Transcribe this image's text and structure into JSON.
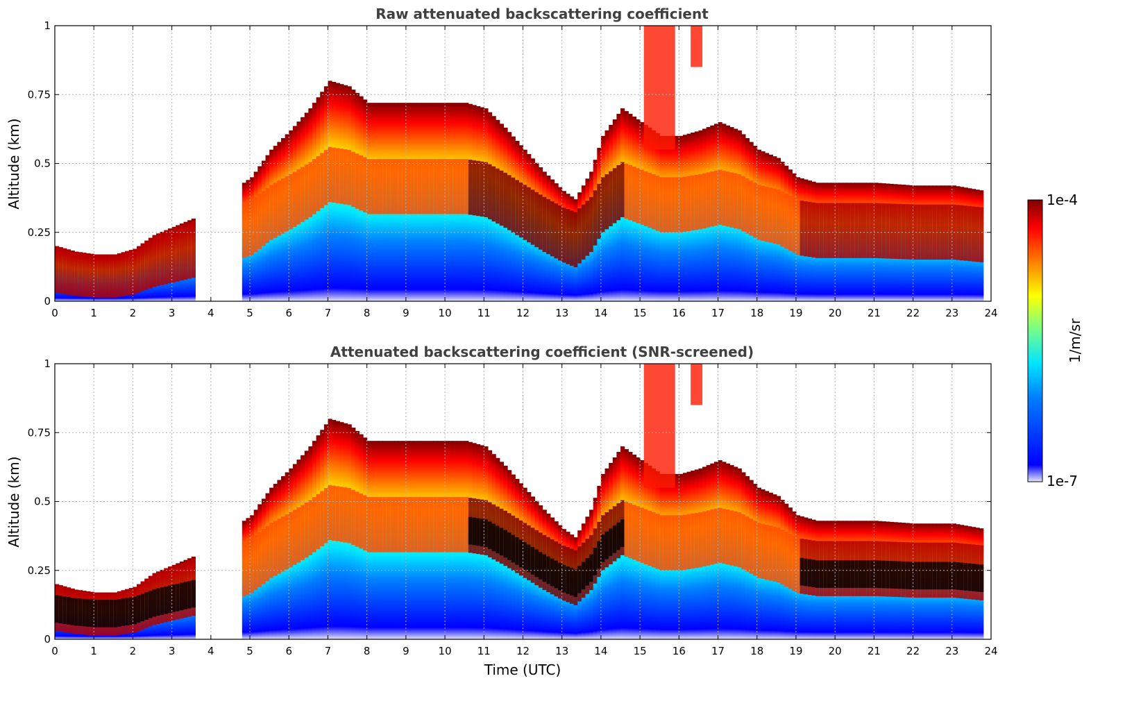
{
  "chart_data": [
    {
      "type": "heatmap",
      "title": "Raw attenuated backscattering coefficient",
      "xlabel": "",
      "ylabel": "Altitude (km)",
      "xlim": [
        0,
        24
      ],
      "ylim": [
        0,
        1
      ],
      "xticks": [
        0,
        1,
        2,
        3,
        4,
        5,
        6,
        7,
        8,
        9,
        10,
        11,
        12,
        13,
        14,
        15,
        16,
        17,
        18,
        19,
        20,
        21,
        22,
        23,
        24
      ],
      "yticks": [
        0,
        0.25,
        0.5,
        0.75,
        1
      ],
      "ytick_labels": [
        "0",
        "0.25",
        "0.5",
        "0.75",
        "1"
      ],
      "grid": true,
      "data_gap_hours": [
        3.6,
        4.7
      ],
      "data_end_hour": 23.8,
      "layer_top_km": [
        [
          0,
          0.2
        ],
        [
          0.5,
          0.18
        ],
        [
          1,
          0.17
        ],
        [
          1.5,
          0.17
        ],
        [
          2,
          0.19
        ],
        [
          2.5,
          0.24
        ],
        [
          3,
          0.27
        ],
        [
          3.5,
          0.3
        ],
        [
          4.7,
          0.42
        ],
        [
          5,
          0.45
        ],
        [
          5.5,
          0.55
        ],
        [
          6,
          0.62
        ],
        [
          6.5,
          0.7
        ],
        [
          7,
          0.8
        ],
        [
          7.5,
          0.78
        ],
        [
          8,
          0.72
        ],
        [
          8.5,
          0.72
        ],
        [
          9,
          0.72
        ],
        [
          9.5,
          0.72
        ],
        [
          10,
          0.72
        ],
        [
          10.5,
          0.72
        ],
        [
          11,
          0.7
        ],
        [
          11.5,
          0.63
        ],
        [
          12,
          0.55
        ],
        [
          12.5,
          0.47
        ],
        [
          13,
          0.4
        ],
        [
          13.3,
          0.37
        ],
        [
          13.7,
          0.47
        ],
        [
          14,
          0.6
        ],
        [
          14.5,
          0.7
        ],
        [
          15,
          0.65
        ],
        [
          15.5,
          0.6
        ],
        [
          16,
          0.6
        ],
        [
          16.5,
          0.62
        ],
        [
          17,
          0.65
        ],
        [
          17.5,
          0.62
        ],
        [
          18,
          0.55
        ],
        [
          18.5,
          0.52
        ],
        [
          19,
          0.45
        ],
        [
          19.5,
          0.43
        ],
        [
          20,
          0.43
        ],
        [
          21,
          0.43
        ],
        [
          22,
          0.42
        ],
        [
          23,
          0.42
        ],
        [
          23.8,
          0.4
        ]
      ],
      "high_clouds": [
        {
          "start": 15.1,
          "end": 15.9,
          "bottom_km": 0.55
        },
        {
          "start": 16.3,
          "end": 16.6,
          "bottom_km": 0.85
        }
      ]
    },
    {
      "type": "heatmap",
      "title": "Attenuated backscattering coefficient (SNR-screened)",
      "xlabel": "Time (UTC)",
      "ylabel": "Altitude (km)",
      "xlim": [
        0,
        24
      ],
      "ylim": [
        0,
        1
      ],
      "xticks": [
        0,
        1,
        2,
        3,
        4,
        5,
        6,
        7,
        8,
        9,
        10,
        11,
        12,
        13,
        14,
        15,
        16,
        17,
        18,
        19,
        20,
        21,
        22,
        23,
        24
      ],
      "yticks": [
        0,
        0.25,
        0.5,
        0.75,
        1
      ],
      "ytick_labels": [
        "0",
        "0.25",
        "0.5",
        "0.75",
        "1"
      ],
      "grid": true,
      "data_gap_hours": [
        3.6,
        4.7
      ],
      "data_end_hour": 23.8
    }
  ],
  "colorbar": {
    "label": "1/m/sr",
    "max_label": "1e-4",
    "min_label": "1e-7",
    "colors": [
      "#e6e6fa",
      "#0000ff",
      "#0080ff",
      "#00e5ff",
      "#80ff80",
      "#ffff00",
      "#ff8000",
      "#ff0000",
      "#800000"
    ]
  }
}
